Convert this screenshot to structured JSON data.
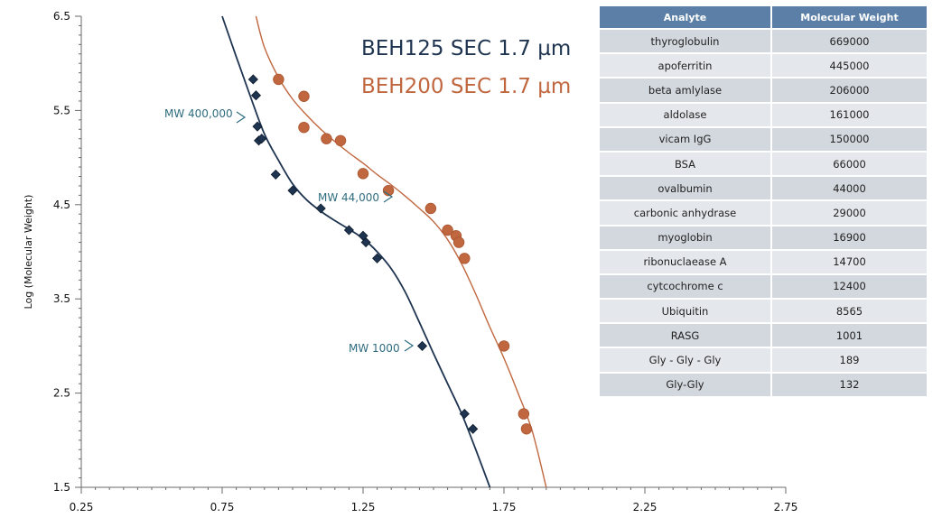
{
  "chart_data": {
    "type": "scatter",
    "ylabel": "Log (Molecular Weight)",
    "xlabel": "",
    "xlim": [
      0.25,
      2.75
    ],
    "ylim": [
      1.5,
      6.5
    ],
    "x_ticks": [
      "0.25",
      "0.75",
      "1.25",
      "1.75",
      "2.25",
      "2.75"
    ],
    "y_ticks": [
      "1.5",
      "2.5",
      "3.5",
      "4.5",
      "5.5",
      "6.5"
    ],
    "grid": false,
    "legend_position": "top-center",
    "series": [
      {
        "name": "BEH125 SEC 1.7 µm",
        "color": "#1e3450",
        "marker": "diamond",
        "points": [
          [
            0.86,
            5.83
          ],
          [
            0.87,
            5.66
          ],
          [
            0.875,
            5.33
          ],
          [
            0.88,
            5.18
          ],
          [
            0.89,
            5.2
          ],
          [
            0.94,
            4.82
          ],
          [
            1.0,
            4.65
          ],
          [
            1.1,
            4.46
          ],
          [
            1.2,
            4.23
          ],
          [
            1.25,
            4.17
          ],
          [
            1.26,
            4.1
          ],
          [
            1.3,
            3.93
          ],
          [
            1.46,
            3.0
          ],
          [
            1.61,
            2.28
          ],
          [
            1.64,
            2.12
          ]
        ],
        "fit": [
          [
            0.75,
            6.5
          ],
          [
            0.8,
            6.07
          ],
          [
            0.85,
            5.65
          ],
          [
            0.9,
            5.25
          ],
          [
            0.95,
            4.97
          ],
          [
            1.0,
            4.72
          ],
          [
            1.05,
            4.55
          ],
          [
            1.1,
            4.43
          ],
          [
            1.15,
            4.33
          ],
          [
            1.2,
            4.24
          ],
          [
            1.25,
            4.14
          ],
          [
            1.3,
            4.0
          ],
          [
            1.35,
            3.82
          ],
          [
            1.4,
            3.57
          ],
          [
            1.45,
            3.25
          ],
          [
            1.5,
            2.92
          ],
          [
            1.55,
            2.6
          ],
          [
            1.6,
            2.28
          ],
          [
            1.65,
            1.9
          ],
          [
            1.7,
            1.5
          ]
        ]
      },
      {
        "name": "BEH200 SEC 1.7 µm",
        "color": "#c0673f",
        "marker": "circle",
        "points": [
          [
            0.95,
            5.83
          ],
          [
            1.04,
            5.32
          ],
          [
            1.04,
            5.65
          ],
          [
            1.12,
            5.2
          ],
          [
            1.17,
            5.18
          ],
          [
            1.25,
            4.83
          ],
          [
            1.34,
            4.65
          ],
          [
            1.49,
            4.46
          ],
          [
            1.55,
            4.23
          ],
          [
            1.58,
            4.17
          ],
          [
            1.59,
            4.1
          ],
          [
            1.61,
            3.93
          ],
          [
            1.75,
            3.0
          ],
          [
            1.82,
            2.28
          ],
          [
            1.83,
            2.12
          ]
        ],
        "fit": [
          [
            0.87,
            6.5
          ],
          [
            0.9,
            6.17
          ],
          [
            0.95,
            5.85
          ],
          [
            1.0,
            5.62
          ],
          [
            1.05,
            5.45
          ],
          [
            1.1,
            5.3
          ],
          [
            1.15,
            5.17
          ],
          [
            1.2,
            5.05
          ],
          [
            1.25,
            4.94
          ],
          [
            1.3,
            4.82
          ],
          [
            1.35,
            4.71
          ],
          [
            1.4,
            4.59
          ],
          [
            1.45,
            4.46
          ],
          [
            1.5,
            4.32
          ],
          [
            1.55,
            4.13
          ],
          [
            1.6,
            3.87
          ],
          [
            1.65,
            3.55
          ],
          [
            1.7,
            3.2
          ],
          [
            1.75,
            2.87
          ],
          [
            1.8,
            2.5
          ],
          [
            1.85,
            2.1
          ],
          [
            1.9,
            1.5
          ]
        ]
      }
    ],
    "annotations": [
      {
        "label": "MW 400,000",
        "x": 0.86,
        "y": 5.6
      },
      {
        "label": "MW 44,000",
        "x": 1.34,
        "y": 4.64
      },
      {
        "label": "MW 1000",
        "x": 1.45,
        "y": 3.02
      }
    ]
  },
  "table": {
    "headers": [
      "Analyte",
      "Molecular Weight"
    ],
    "rows": [
      [
        "thyroglobulin",
        "669000"
      ],
      [
        "apoferritin",
        "445000"
      ],
      [
        "beta amlylase",
        "206000"
      ],
      [
        "aldolase",
        "161000"
      ],
      [
        "vicam IgG",
        "150000"
      ],
      [
        "BSA",
        "66000"
      ],
      [
        "ovalbumin",
        "44000"
      ],
      [
        "carbonic anhydrase",
        "29000"
      ],
      [
        "myoglobin",
        "16900"
      ],
      [
        "ribonuclaease A",
        "14700"
      ],
      [
        "cytcochrome c",
        "12400"
      ],
      [
        "Ubiquitin",
        "8565"
      ],
      [
        "RASG",
        "1001"
      ],
      [
        "Gly - Gly - Gly",
        "189"
      ],
      [
        "Gly-Gly",
        "132"
      ]
    ]
  }
}
